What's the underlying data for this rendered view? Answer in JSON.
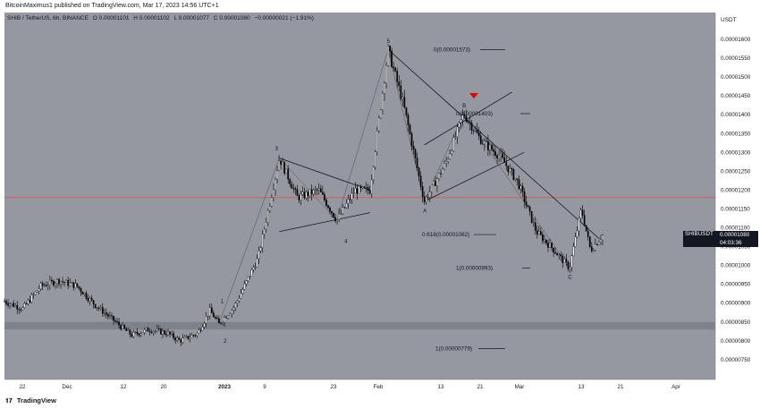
{
  "header": {
    "publisher_line": "BitcoinMaximus1 published on TradingView.com, Mar 17, 2023 14:56 UTC+1"
  },
  "legend": {
    "symbol": "SHIB / TetherUS, 6h, BINANCE",
    "open": "O 0.00001101",
    "high": "H 0.00001102",
    "low": "L 0.00001077",
    "close": "C 0.00001080",
    "change": "−0.00000021 (−1.91%)"
  },
  "price_axis": {
    "currency": "USDT",
    "ticks": [
      "0.00001600",
      "0.00001550",
      "0.00001500",
      "0.00001450",
      "0.00001400",
      "0.00001350",
      "0.00001300",
      "0.00001250",
      "0.00001200",
      "0.00001150",
      "0.00001100",
      "0.00001050",
      "0.00001000",
      "0.00000950",
      "0.00000900",
      "0.00000850",
      "0.00000800",
      "0.00000750"
    ]
  },
  "last_price_label": {
    "symbol": "SHIBUSDT",
    "price": "0.00001080",
    "countdown": "04:03:36"
  },
  "time_axis": {
    "ticks": [
      "22",
      "Dec",
      "12",
      "20",
      "2023",
      "9",
      "23",
      "Feb",
      "13",
      "21",
      "Mar",
      "13",
      "21",
      "Apr"
    ]
  },
  "footer": {
    "brand": "TradingView"
  },
  "colors": {
    "background": "#9598a1",
    "resistance_line": "#e05353",
    "support_zone": "#7b7f88",
    "candles": "#000000",
    "arrow": "#e00000"
  },
  "chart_data": {
    "type": "candlestick",
    "symbol": "SHIB/USDT",
    "timeframe": "6h",
    "y_range": [
      7.2e-06,
      1.64e-05
    ],
    "horizontal_resistance": 1.18e-05,
    "support_zone": [
      8.3e-06,
      8.5e-06
    ],
    "fib_levels": [
      {
        "label": "0(0.00001573)",
        "value": 1.573e-05
      },
      {
        "label": "0(0.00001403)",
        "value": 1.403e-05
      },
      {
        "label": "0.618(0.00001082)",
        "value": 1.082e-05
      },
      {
        "label": "1(0.00000993)",
        "value": 9.93e-06
      },
      {
        "label": "1(0.00000779)",
        "value": 7.79e-06
      }
    ],
    "wave_labels": [
      "1",
      "2",
      "3",
      "4",
      "5",
      "A",
      "B",
      "C"
    ],
    "price_path": [
      {
        "t": 0,
        "p": 9.05e-06
      },
      {
        "t": 6,
        "p": 8.85e-06
      },
      {
        "t": 12,
        "p": 9.45e-06
      },
      {
        "t": 18,
        "p": 9.6e-06
      },
      {
        "t": 24,
        "p": 9.45e-06
      },
      {
        "t": 30,
        "p": 8.95e-06
      },
      {
        "t": 36,
        "p": 8.55e-06
      },
      {
        "t": 42,
        "p": 8.15e-06
      },
      {
        "t": 48,
        "p": 8.3e-06
      },
      {
        "t": 54,
        "p": 8.2e-06
      },
      {
        "t": 58,
        "p": 8e-06
      },
      {
        "t": 64,
        "p": 8.2e-06
      },
      {
        "t": 68,
        "p": 8.8e-06
      },
      {
        "t": 71,
        "p": 8.45e-06
      },
      {
        "t": 76,
        "p": 8.9e-06
      },
      {
        "t": 84,
        "p": 1.02e-05
      },
      {
        "t": 91,
        "p": 1.285e-05
      },
      {
        "t": 97,
        "p": 1.18e-05
      },
      {
        "t": 104,
        "p": 1.2e-05
      },
      {
        "t": 110,
        "p": 1.12e-05
      },
      {
        "t": 116,
        "p": 1.2e-05
      },
      {
        "t": 121,
        "p": 1.2e-05
      },
      {
        "t": 127,
        "p": 1.573e-05
      },
      {
        "t": 132,
        "p": 1.43e-05
      },
      {
        "t": 139,
        "p": 1.17e-05
      },
      {
        "t": 146,
        "p": 1.27e-05
      },
      {
        "t": 152,
        "p": 1.403e-05
      },
      {
        "t": 158,
        "p": 1.33e-05
      },
      {
        "t": 164,
        "p": 1.29e-05
      },
      {
        "t": 170,
        "p": 1.22e-05
      },
      {
        "t": 176,
        "p": 1.09e-05
      },
      {
        "t": 182,
        "p": 1.04e-05
      },
      {
        "t": 187,
        "p": 9.93e-06
      },
      {
        "t": 191,
        "p": 1.15e-05
      },
      {
        "t": 194,
        "p": 1.04e-05
      },
      {
        "t": 198,
        "p": 1.08e-05
      }
    ]
  }
}
